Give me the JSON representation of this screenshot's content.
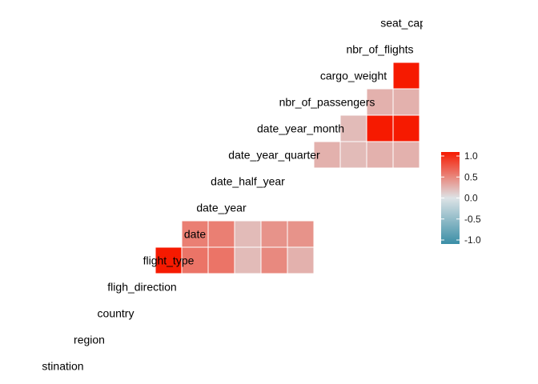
{
  "chart_data": {
    "type": "heatmap",
    "title": "",
    "variables": [
      "seat_capa",
      "nbr_of_flights",
      "cargo_weight",
      "nbr_of_passengers",
      "date_year_month",
      "date_year_quarter",
      "date_half_year",
      "date_year",
      "date",
      "flight_type",
      "fligh_direction",
      "country",
      "region",
      "stination"
    ],
    "cells": [
      {
        "row": "nbr_of_flights",
        "col": "seat_capa",
        "value": 1.0
      },
      {
        "row": "cargo_weight",
        "col": "nbr_of_flights",
        "value": 0.25
      },
      {
        "row": "cargo_weight",
        "col": "seat_capa",
        "value": 0.25
      },
      {
        "row": "nbr_of_passengers",
        "col": "cargo_weight",
        "value": 0.2
      },
      {
        "row": "nbr_of_passengers",
        "col": "nbr_of_flights",
        "value": 1.0
      },
      {
        "row": "nbr_of_passengers",
        "col": "seat_capa",
        "value": 1.0
      },
      {
        "row": "date_year_month",
        "col": "nbr_of_passengers",
        "value": 0.25
      },
      {
        "row": "date_year_month",
        "col": "cargo_weight",
        "value": 0.2
      },
      {
        "row": "date_year_month",
        "col": "nbr_of_flights",
        "value": 0.25
      },
      {
        "row": "date_year_month",
        "col": "seat_capa",
        "value": 0.25
      },
      {
        "row": "date_year",
        "col": "date_year_month",
        "value": 0.4
      },
      {
        "row": "date_year",
        "col": "date_year_quarter",
        "value": 0.4
      },
      {
        "row": "date_year",
        "col": "date_half_year",
        "value": 0.2
      },
      {
        "row": "date_year",
        "col": "date_year",
        "value": 0.5
      },
      {
        "row": "date_year",
        "col": "date",
        "value": 0.5
      },
      {
        "row": "date",
        "col": "date_year_month",
        "value": 0.25
      },
      {
        "row": "date",
        "col": "date_year_quarter",
        "value": 0.45
      },
      {
        "row": "date",
        "col": "date_half_year",
        "value": 0.2
      },
      {
        "row": "date",
        "col": "date_year",
        "value": 0.55
      },
      {
        "row": "date",
        "col": "date",
        "value": 0.55
      },
      {
        "row": "date",
        "col": "flight_type",
        "value": 1.0
      }
    ],
    "legend": {
      "position": "right",
      "min": -1.0,
      "max": 1.0,
      "ticks": [
        1.0,
        0.5,
        0.0,
        -0.5,
        -1.0
      ],
      "tick_labels": [
        "1.0",
        "0.5",
        "0.0",
        "-0.5",
        "-1.0"
      ]
    },
    "colors": {
      "low": "#3a8ea6",
      "mid": "#dde3e6",
      "high": "#f61a00"
    },
    "grid": false
  }
}
